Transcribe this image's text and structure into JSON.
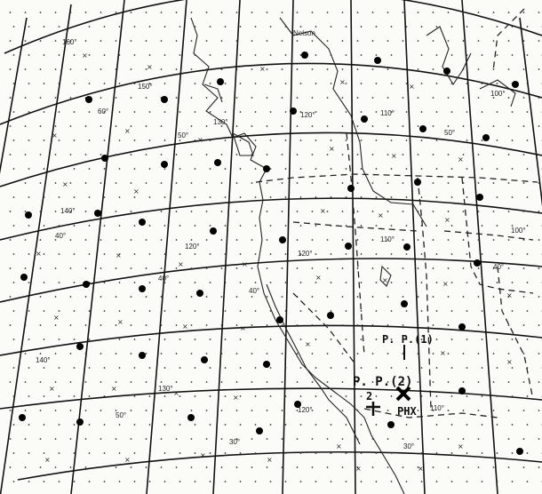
{
  "labels": {
    "nelson": "Nelson",
    "pp1": "P. P.(1)",
    "pp2": "P. P.(2)",
    "pp2_num": "2",
    "phx": "PHX"
  },
  "grid_labels": {
    "lon": [
      "160°",
      "150°",
      "140°",
      "130°",
      "120°",
      "110°",
      "100°",
      "140°",
      "120°",
      "120°",
      "110°",
      "130°",
      "120°",
      "110°",
      "100°"
    ],
    "lat": [
      "60°",
      "50°",
      "50°",
      "40°",
      "40°",
      "30°",
      "30°",
      "40°",
      "50°",
      "40°"
    ]
  },
  "icons": {
    "phx_marker": "x-cross-icon",
    "pp2_marker": "plus-cross-icon"
  },
  "colors": {
    "ink": "#111111",
    "paper": "#fbfbf8"
  }
}
